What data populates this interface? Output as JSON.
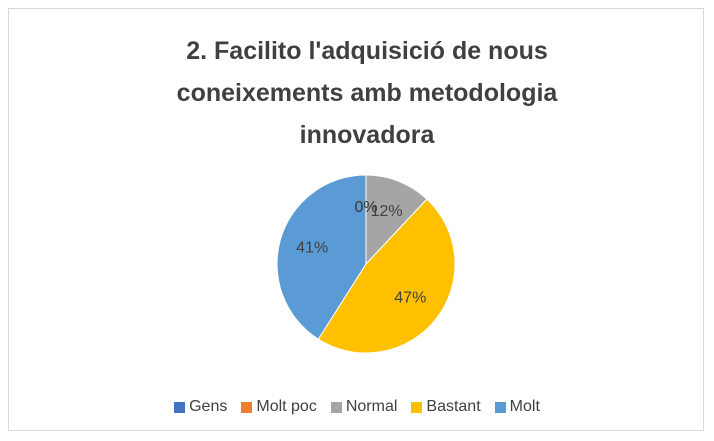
{
  "chart_data": {
    "type": "pie",
    "title": "2. Facilito l'adquisició de nous coneixements amb metodologia innovadora",
    "categories": [
      "Gens",
      "Molt poc",
      "Normal",
      "Bastant",
      "Molt"
    ],
    "values": [
      0,
      0,
      12,
      47,
      41
    ],
    "value_labels": [
      "0%",
      "0%",
      "12%",
      "47%",
      "41%"
    ],
    "colors": [
      "#4472c4",
      "#ed7d31",
      "#a5a5a5",
      "#ffc000",
      "#5b9bd5"
    ]
  }
}
